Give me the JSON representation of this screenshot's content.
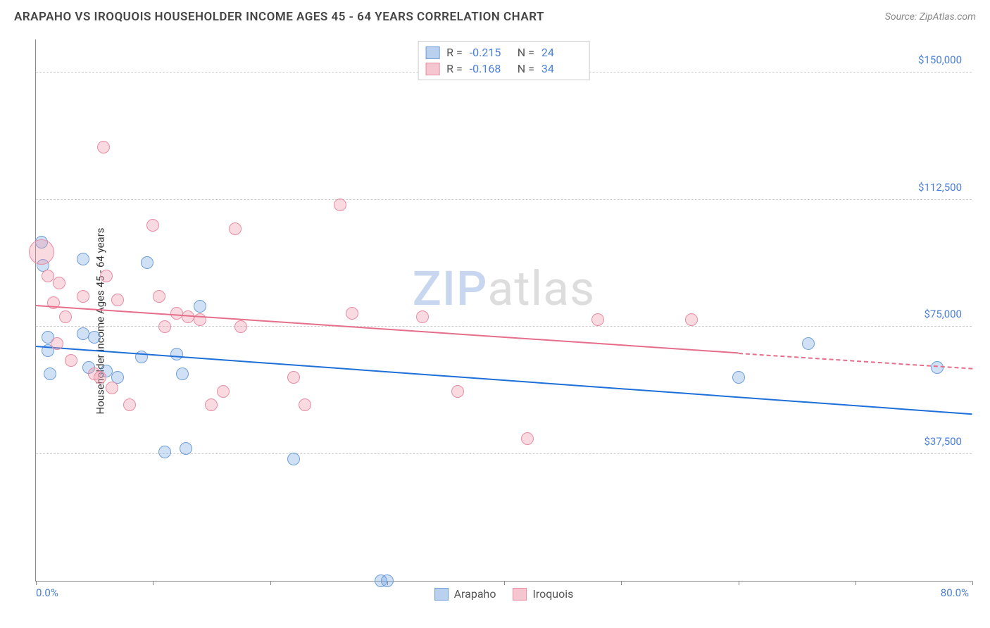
{
  "header": {
    "title": "ARAPAHO VS IROQUOIS HOUSEHOLDER INCOME AGES 45 - 64 YEARS CORRELATION CHART",
    "source": "Source: ZipAtlas.com"
  },
  "watermark": {
    "part1": "ZIP",
    "part2": "atlas"
  },
  "chart": {
    "type": "scatter",
    "ylabel": "Householder Income Ages 45 - 64 years",
    "xlim": [
      0,
      80
    ],
    "ylim": [
      0,
      160000
    ],
    "x_tick_positions": [
      0,
      10,
      20,
      30,
      40,
      50,
      60,
      70,
      80
    ],
    "x_tick_labels": {
      "start": "0.0%",
      "end": "80.0%"
    },
    "y_gridlines": [
      37500,
      75000,
      112500,
      150000
    ],
    "y_tick_labels": [
      "$37,500",
      "$75,000",
      "$112,500",
      "$150,000"
    ],
    "grid_color": "#cccccc",
    "axis_color": "#888888",
    "background_color": "#ffffff",
    "tick_label_color": "#4a7fd8",
    "point_radius": 9,
    "series": [
      {
        "name": "Arapaho",
        "fill": "rgba(120,165,225,0.35)",
        "stroke": "#6f9fd8",
        "swatch_fill": "#b9d0ee",
        "swatch_border": "#6f9fd8",
        "R": "-0.215",
        "N": "24",
        "trend": {
          "x1": 0,
          "y1": 69000,
          "x2": 80,
          "y2": 49000,
          "color": "#1e6fd8",
          "dash_from": 80
        },
        "points": [
          [
            0.5,
            100000
          ],
          [
            0.6,
            93000
          ],
          [
            1,
            72000
          ],
          [
            1,
            68000
          ],
          [
            1.2,
            61000
          ],
          [
            4,
            95000
          ],
          [
            4,
            73000
          ],
          [
            4.5,
            63000
          ],
          [
            5,
            72000
          ],
          [
            6,
            62000
          ],
          [
            7,
            60000
          ],
          [
            9,
            66000
          ],
          [
            9.5,
            94000
          ],
          [
            11,
            38000
          ],
          [
            12,
            67000
          ],
          [
            12.5,
            61000
          ],
          [
            12.8,
            39000
          ],
          [
            14,
            81000
          ],
          [
            22,
            36000
          ],
          [
            29.5,
            0
          ],
          [
            30,
            0
          ],
          [
            60,
            60000
          ],
          [
            66,
            70000
          ],
          [
            77,
            63000
          ]
        ]
      },
      {
        "name": "Iroquois",
        "fill": "rgba(240,150,170,0.35)",
        "stroke": "#e88ca2",
        "swatch_fill": "#f6c6d0",
        "swatch_border": "#e88ca2",
        "R": "-0.168",
        "N": "34",
        "trend": {
          "x1": 0,
          "y1": 81000,
          "x2": 60,
          "y2": 67000,
          "color": "#e56f8b",
          "dash_from": 60,
          "dash_to_x": 80,
          "dash_to_y": 62500
        },
        "points": [
          [
            0.5,
            97000,
            18
          ],
          [
            1,
            90000
          ],
          [
            1.5,
            82000
          ],
          [
            1.8,
            70000
          ],
          [
            2,
            88000
          ],
          [
            2.5,
            78000
          ],
          [
            3,
            65000
          ],
          [
            4,
            84000
          ],
          [
            5,
            61000
          ],
          [
            5.5,
            60000
          ],
          [
            5.8,
            128000
          ],
          [
            6,
            90000
          ],
          [
            6.5,
            57000
          ],
          [
            7,
            83000
          ],
          [
            8,
            52000
          ],
          [
            10,
            105000
          ],
          [
            10.5,
            84000
          ],
          [
            11,
            75000
          ],
          [
            12,
            79000
          ],
          [
            13,
            78000
          ],
          [
            14,
            77000
          ],
          [
            15,
            52000
          ],
          [
            16,
            56000
          ],
          [
            17,
            104000
          ],
          [
            17.5,
            75000
          ],
          [
            22,
            60000
          ],
          [
            23,
            52000
          ],
          [
            26,
            111000
          ],
          [
            27,
            79000
          ],
          [
            33,
            78000
          ],
          [
            36,
            56000
          ],
          [
            42,
            42000
          ],
          [
            48,
            77000
          ],
          [
            56,
            77000
          ]
        ]
      }
    ]
  },
  "legend_top_labels": {
    "R": "R =",
    "N": "N ="
  },
  "legend_bottom": [
    "Arapaho",
    "Iroquois"
  ]
}
